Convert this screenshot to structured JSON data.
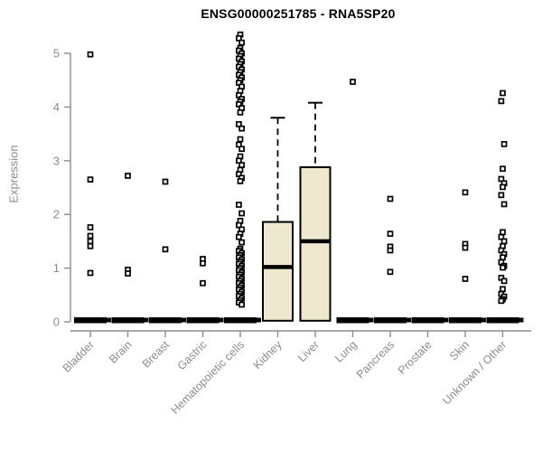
{
  "chart_data": {
    "type": "boxplot",
    "title": "ENSG00000251785 - RNA5SP20",
    "ylabel": "Expression",
    "xlabel": "",
    "ylim": [
      0,
      5
    ],
    "yticks": [
      0,
      1,
      2,
      3,
      4,
      5
    ],
    "grid": false,
    "legend": "none",
    "marker_style": "open-square",
    "categories": [
      "Bladder",
      "Brain",
      "Breast",
      "Gastric",
      "Hematopoietic cells",
      "Kidney",
      "Liver",
      "Lung",
      "Pancreas",
      "Prostate",
      "Skin",
      "Unknown / Other"
    ],
    "groups": [
      {
        "category": "Bladder",
        "box": {
          "whisker_low": 0,
          "q1": 0,
          "median": 0,
          "q3": 0,
          "whisker_high": 0
        },
        "outliers": [
          4.98,
          2.65,
          1.76,
          1.6,
          1.5,
          1.41,
          0.91
        ]
      },
      {
        "category": "Brain",
        "box": {
          "whisker_low": 0,
          "q1": 0,
          "median": 0,
          "q3": 0,
          "whisker_high": 0
        },
        "outliers": [
          2.72,
          0.97,
          0.9
        ]
      },
      {
        "category": "Breast",
        "box": {
          "whisker_low": 0,
          "q1": 0,
          "median": 0,
          "q3": 0,
          "whisker_high": 0
        },
        "outliers": [
          2.61,
          1.35
        ]
      },
      {
        "category": "Gastric",
        "box": {
          "whisker_low": 0,
          "q1": 0,
          "median": 0,
          "q3": 0,
          "whisker_high": 0
        },
        "outliers": [
          1.17,
          1.09,
          0.72
        ]
      },
      {
        "category": "Hematopoietic cells",
        "box": {
          "whisker_low": 0,
          "q1": 0,
          "median": 0,
          "q3": 0,
          "whisker_high": 0
        },
        "outliers": [
          5.35,
          5.28,
          5.2,
          5.1,
          5.05,
          5.0,
          4.95,
          4.9,
          4.85,
          4.8,
          4.75,
          4.7,
          4.65,
          4.6,
          4.55,
          4.5,
          4.45,
          4.38,
          4.3,
          4.22,
          4.15,
          4.1,
          4.05,
          3.98,
          3.9,
          3.68,
          3.6,
          3.4,
          3.3,
          3.22,
          3.08,
          3.0,
          2.92,
          2.83,
          2.75,
          2.68,
          2.62,
          2.18,
          2.02,
          1.88,
          1.8,
          1.72,
          1.64,
          1.58,
          1.48,
          1.36,
          1.32,
          1.28,
          1.24,
          1.2,
          1.16,
          1.12,
          1.08,
          1.04,
          1.0,
          0.96,
          0.92,
          0.88,
          0.84,
          0.8,
          0.76,
          0.72,
          0.68,
          0.64,
          0.6,
          0.56,
          0.52,
          0.48,
          0.44,
          0.4,
          0.36,
          0.32
        ]
      },
      {
        "category": "Kidney",
        "box": {
          "whisker_low": 0,
          "q1": 0.02,
          "median": 1.02,
          "q3": 1.86,
          "whisker_high": 3.8
        },
        "outliers": []
      },
      {
        "category": "Liver",
        "box": {
          "whisker_low": 0,
          "q1": 0.02,
          "median": 1.5,
          "q3": 2.88,
          "whisker_high": 4.08
        },
        "outliers": []
      },
      {
        "category": "Lung",
        "box": {
          "whisker_low": 0,
          "q1": 0,
          "median": 0,
          "q3": 0,
          "whisker_high": 0
        },
        "outliers": [
          4.47
        ]
      },
      {
        "category": "Pancreas",
        "box": {
          "whisker_low": 0,
          "q1": 0,
          "median": 0,
          "q3": 0,
          "whisker_high": 0
        },
        "outliers": [
          2.29,
          1.64,
          1.4,
          1.33,
          0.93
        ]
      },
      {
        "category": "Prostate",
        "box": {
          "whisker_low": 0,
          "q1": 0,
          "median": 0,
          "q3": 0,
          "whisker_high": 0
        },
        "outliers": []
      },
      {
        "category": "Skin",
        "box": {
          "whisker_low": 0,
          "q1": 0,
          "median": 0,
          "q3": 0,
          "whisker_high": 0
        },
        "outliers": [
          2.41,
          1.45,
          1.38,
          0.8
        ]
      },
      {
        "category": "Unknown / Other",
        "box": {
          "whisker_low": 0,
          "q1": 0,
          "median": 0,
          "q3": 0,
          "whisker_high": 0
        },
        "outliers": [
          4.26,
          4.11,
          3.31,
          2.85,
          2.66,
          2.58,
          2.51,
          2.36,
          2.19,
          1.67,
          1.58,
          1.5,
          1.41,
          1.33,
          1.26,
          1.2,
          1.11,
          1.04,
          1.01,
          0.82,
          0.76,
          0.61,
          0.52,
          0.47,
          0.42,
          0.39
        ]
      }
    ],
    "colors": {
      "box_fill": "#EDE8CE",
      "box_border": "#000000",
      "median": "#000000",
      "whisker": "#000000",
      "outlier_stroke": "#000000",
      "axis": "#8C8C8C",
      "tick_text": "#8C8C8C",
      "title_text": "#000000",
      "background": "#FFFFFF"
    }
  }
}
